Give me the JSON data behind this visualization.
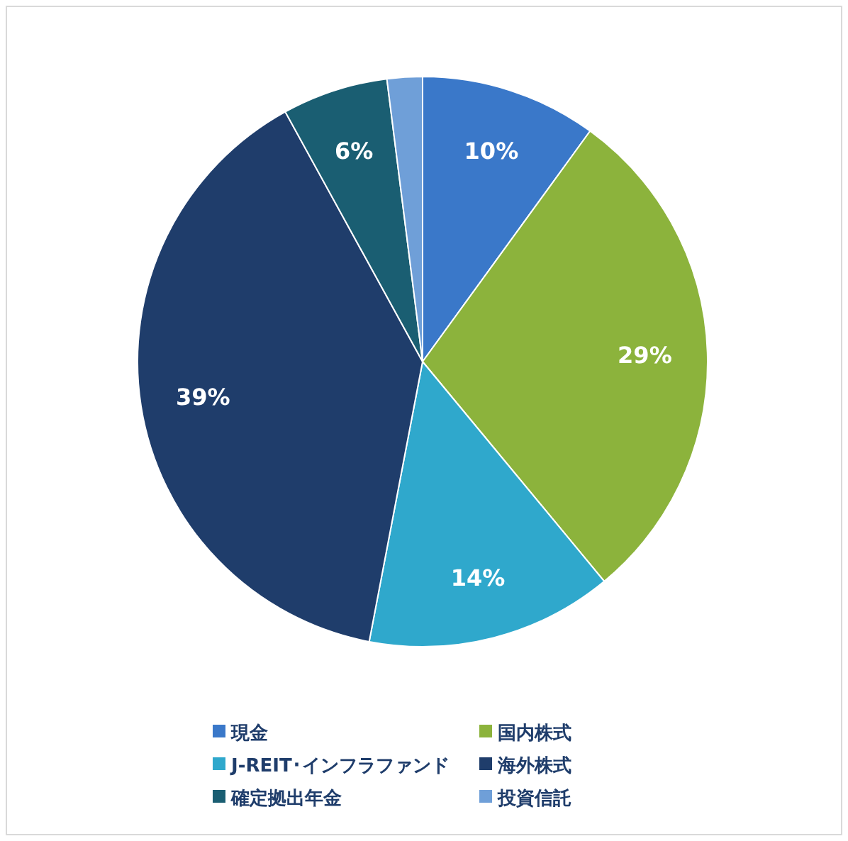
{
  "chart_data": {
    "type": "pie",
    "categories": [
      "現金",
      "国内株式",
      "J-REIT･インフラファンド",
      "海外株式",
      "確定拠出年金",
      "投資信託"
    ],
    "values": [
      10,
      29,
      14,
      39,
      6,
      2
    ],
    "colors": [
      "#3a78c9",
      "#8cb33c",
      "#2fa8cc",
      "#1f3d6b",
      "#1a5e72",
      "#6f9fd8"
    ],
    "value_labels": [
      "10%",
      "29%",
      "14%",
      "39%",
      "6%",
      null
    ],
    "legend": "bottom"
  }
}
